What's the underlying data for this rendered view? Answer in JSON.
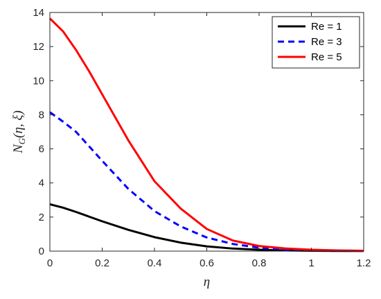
{
  "chart_data": {
    "type": "line",
    "title": "",
    "xlabel": "η",
    "ylabel": "N_G(η, ξ)",
    "ylabel_main": "N",
    "ylabel_sub": "G",
    "ylabel_args": "(η, ξ)",
    "xlim": [
      0,
      1.2
    ],
    "ylim": [
      0,
      14
    ],
    "x_ticks": [
      0,
      0.2,
      0.4,
      0.6,
      0.8,
      1,
      1.2
    ],
    "x_tick_labels": [
      "0",
      "0.2",
      "0.4",
      "0.6",
      "0.8",
      "1",
      "1.2"
    ],
    "y_ticks": [
      0,
      2,
      4,
      6,
      8,
      10,
      12,
      14
    ],
    "y_tick_labels": [
      "0",
      "2",
      "4",
      "6",
      "8",
      "10",
      "12",
      "14"
    ],
    "grid": false,
    "legend_position": "top-right",
    "series": [
      {
        "name": "Re = 1",
        "color": "#000000",
        "style": "solid",
        "x": [
          0,
          0.05,
          0.1,
          0.2,
          0.3,
          0.4,
          0.5,
          0.6,
          0.7,
          0.8,
          0.9,
          1.0,
          1.1,
          1.2
        ],
        "y": [
          2.75,
          2.55,
          2.3,
          1.75,
          1.25,
          0.82,
          0.5,
          0.28,
          0.15,
          0.08,
          0.04,
          0.02,
          0.01,
          0.01
        ]
      },
      {
        "name": "Re = 3",
        "color": "#0000ff",
        "style": "dashed",
        "x": [
          0,
          0.05,
          0.1,
          0.2,
          0.3,
          0.4,
          0.5,
          0.6,
          0.7,
          0.8,
          0.9,
          1.0,
          1.1,
          1.2
        ],
        "y": [
          8.15,
          7.6,
          7.0,
          5.3,
          3.65,
          2.35,
          1.45,
          0.8,
          0.42,
          0.2,
          0.09,
          0.04,
          0.02,
          0.01
        ]
      },
      {
        "name": "Re = 5",
        "color": "#ff0000",
        "style": "solid",
        "x": [
          0,
          0.05,
          0.1,
          0.15,
          0.2,
          0.3,
          0.4,
          0.5,
          0.6,
          0.7,
          0.8,
          0.9,
          1.0,
          1.1,
          1.2
        ],
        "y": [
          13.65,
          12.9,
          11.8,
          10.55,
          9.2,
          6.5,
          4.1,
          2.5,
          1.3,
          0.62,
          0.3,
          0.16,
          0.08,
          0.04,
          0.02
        ]
      }
    ]
  }
}
